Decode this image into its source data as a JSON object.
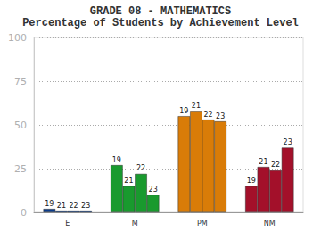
{
  "chart_data": {
    "type": "bar",
    "title": "GRADE 08 - MATHEMATICS",
    "subtitle": "Percentage of Students by Achievement Level",
    "categories": [
      "E",
      "M",
      "PM",
      "NM"
    ],
    "series": [
      {
        "name": "19",
        "values": [
          2,
          27,
          55,
          15
        ],
        "colors": [
          "#0b3c8c",
          "#199a2e",
          "#d97c08",
          "#a3102a"
        ]
      },
      {
        "name": "21",
        "values": [
          1,
          15,
          58,
          26
        ],
        "colors": [
          "#0b3c8c",
          "#199a2e",
          "#d97c08",
          "#a3102a"
        ]
      },
      {
        "name": "22",
        "values": [
          1,
          22,
          53,
          24
        ],
        "colors": [
          "#0b3c8c",
          "#199a2e",
          "#d97c08",
          "#a3102a"
        ]
      },
      {
        "name": "23",
        "values": [
          1,
          10,
          52,
          37
        ],
        "colors": [
          "#0b3c8c",
          "#199a2e",
          "#d97c08",
          "#a3102a"
        ]
      }
    ],
    "ylim": [
      0,
      100
    ],
    "yticks": [
      0,
      25,
      50,
      75,
      100
    ],
    "grid": true
  }
}
